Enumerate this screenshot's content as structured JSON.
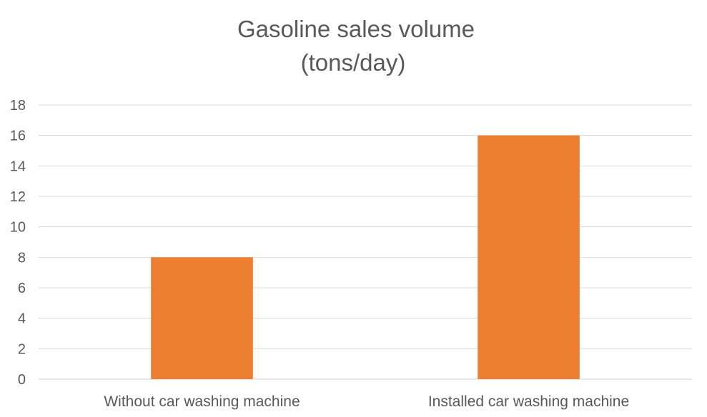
{
  "chart_data": {
    "type": "bar",
    "title": [
      "Gasoline sales volume",
      "(tons/day)"
    ],
    "categories": [
      "Without car washing machine",
      "Installed car washing machine"
    ],
    "series": [
      {
        "values": [
          8,
          16
        ],
        "color": "#ED7D31"
      }
    ],
    "ylim": [
      0,
      18
    ],
    "y_ticks": [
      0,
      2,
      4,
      6,
      8,
      10,
      12,
      14,
      16,
      18
    ],
    "grid": true,
    "legend": "none"
  }
}
